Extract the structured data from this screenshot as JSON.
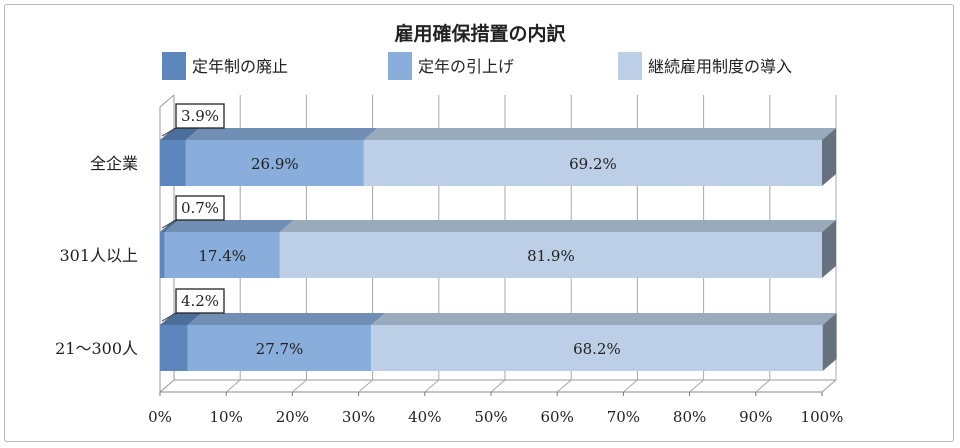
{
  "chart_data": {
    "type": "bar",
    "stacked": true,
    "orientation": "horizontal",
    "style": "3d",
    "title": "雇用確保措置の内訳",
    "legend_position": "top",
    "categories": [
      "全企業",
      "301人以上",
      "21～300人"
    ],
    "series": [
      {
        "name": "定年制の廃止",
        "color": "#5d86bd",
        "values": [
          3.9,
          0.7,
          4.2
        ],
        "labels": [
          "3.9%",
          "0.7%",
          "4.2%"
        ]
      },
      {
        "name": "定年の引上げ",
        "color": "#8aaedc",
        "values": [
          26.9,
          17.4,
          27.7
        ],
        "labels": [
          "26.9%",
          "17.4%",
          "27.7%"
        ]
      },
      {
        "name": "継続雇用制度の導入",
        "color": "#bccfe6",
        "values": [
          69.2,
          81.9,
          68.2
        ],
        "labels": [
          "69.2%",
          "81.9%",
          "68.2%"
        ]
      }
    ],
    "xlim": [
      0,
      100
    ],
    "x_ticks": [
      "0%",
      "10%",
      "20%",
      "30%",
      "40%",
      "50%",
      "60%",
      "70%",
      "80%",
      "90%",
      "100%"
    ],
    "grid": true
  }
}
